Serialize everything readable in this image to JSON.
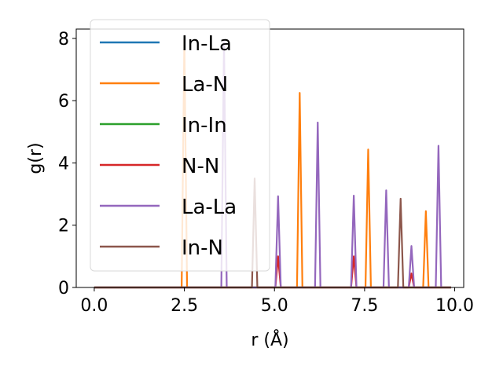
{
  "chart_data": {
    "type": "line",
    "xlabel": "r (Å)",
    "ylabel": "g(r)",
    "xlim": [
      -0.5,
      10.25
    ],
    "ylim": [
      0,
      8.3
    ],
    "xticks": [
      0.0,
      2.5,
      5.0,
      7.5,
      10.0
    ],
    "xtick_labels": [
      "0.0",
      "2.5",
      "5.0",
      "7.5",
      "10.0"
    ],
    "yticks": [
      0,
      2,
      4,
      6,
      8
    ],
    "ytick_labels": [
      "0",
      "2",
      "4",
      "6",
      "8"
    ],
    "grid": false,
    "legend_position": "top-left",
    "x_range": [
      0.0,
      9.9
    ],
    "peak_half_width": 0.075,
    "series": [
      {
        "name": "In-La",
        "color": "#1f77b4",
        "peaks": []
      },
      {
        "name": "La-N",
        "color": "#ff7f0e",
        "peaks": [
          [
            2.5,
            8.0
          ],
          [
            5.7,
            6.25
          ],
          [
            7.6,
            4.43
          ],
          [
            9.2,
            2.45
          ]
        ]
      },
      {
        "name": "In-In",
        "color": "#2ca02c",
        "peaks": []
      },
      {
        "name": "N-N",
        "color": "#d62728",
        "peaks": [
          [
            5.1,
            1.0
          ],
          [
            7.2,
            1.0
          ],
          [
            8.8,
            0.45
          ]
        ]
      },
      {
        "name": "La-La",
        "color": "#9467bd",
        "peaks": [
          [
            3.6,
            7.9
          ],
          [
            5.1,
            2.93
          ],
          [
            6.2,
            5.3
          ],
          [
            7.2,
            2.95
          ],
          [
            8.1,
            3.12
          ],
          [
            8.8,
            1.33
          ],
          [
            9.55,
            4.55
          ]
        ]
      },
      {
        "name": "In-N",
        "color": "#8c564b",
        "peaks": [
          [
            4.45,
            3.5
          ],
          [
            8.5,
            2.85
          ]
        ]
      }
    ]
  }
}
